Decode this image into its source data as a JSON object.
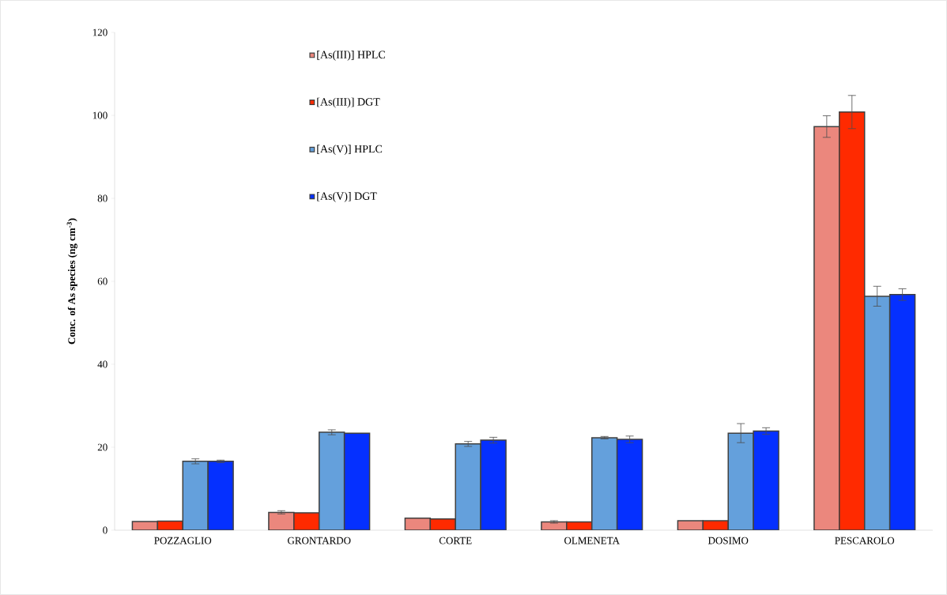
{
  "chart_data": {
    "type": "bar",
    "ylabel": "Conc. of As species (ng cm$^{-3}$)",
    "categories": [
      "POZZAGLIO",
      "GRONTARDO",
      "CORTE",
      "OLMENETA",
      "DOSIMO",
      "PESCAROLO"
    ],
    "series": [
      {
        "name": "[As(III)] HPLC",
        "color": "#eb877d",
        "values": [
          2.1,
          4.3,
          2.9,
          2.0,
          2.3,
          97.3
        ],
        "errors": [
          null,
          0.4,
          null,
          0.3,
          null,
          2.6
        ]
      },
      {
        "name": "[As(III)] DGT",
        "color": "#ff2a00",
        "values": [
          2.2,
          4.2,
          2.7,
          2.0,
          2.3,
          100.8
        ],
        "errors": [
          null,
          null,
          null,
          null,
          null,
          4.0
        ]
      },
      {
        "name": "[As(V)] HPLC",
        "color": "#64a0dc",
        "values": [
          16.6,
          23.6,
          20.8,
          22.3,
          23.4,
          56.4
        ],
        "errors": [
          0.6,
          0.6,
          0.6,
          0.3,
          2.3,
          2.4
        ]
      },
      {
        "name": "[As(V)] DGT",
        "color": "#0530ff",
        "values": [
          16.6,
          23.4,
          21.7,
          21.9,
          23.9,
          56.8
        ],
        "errors": [
          0.3,
          null,
          0.7,
          0.8,
          0.8,
          1.4
        ]
      }
    ],
    "ylim": [
      0,
      120
    ],
    "yticks": [
      0,
      20,
      40,
      60,
      80,
      100,
      120
    ],
    "legend": "top left"
  }
}
